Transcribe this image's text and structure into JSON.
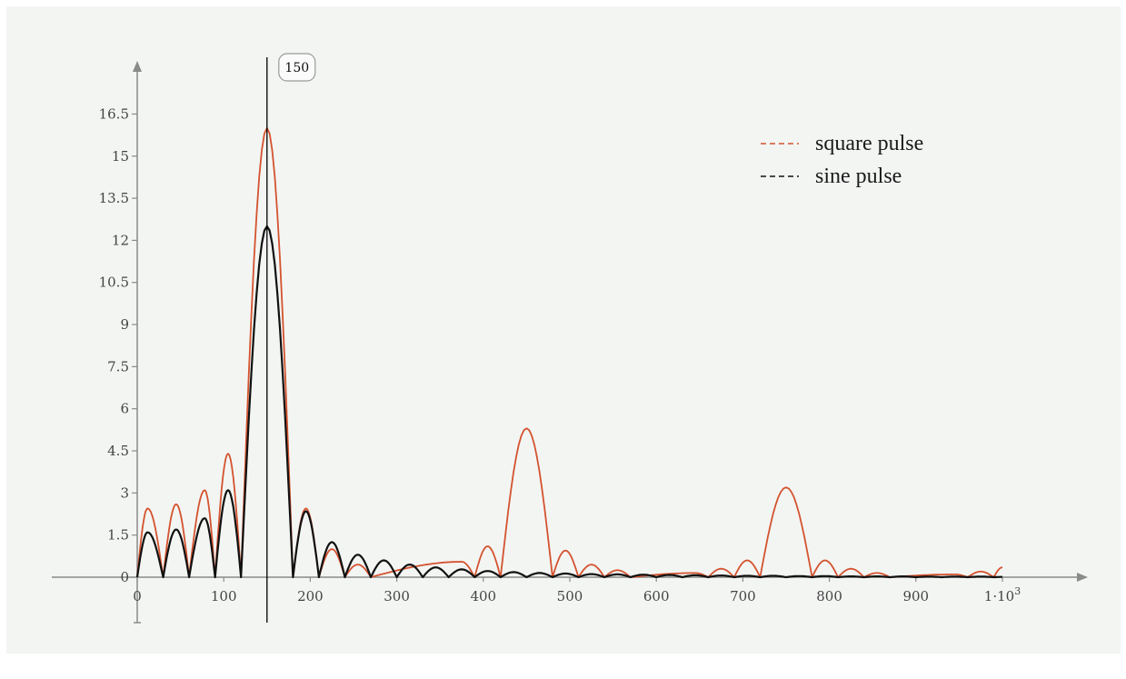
{
  "chart_data": {
    "type": "line",
    "title": "",
    "xlabel": "",
    "ylabel": "",
    "xlim": [
      0,
      1000
    ],
    "ylim": [
      0,
      17
    ],
    "x_ticks": [
      "0",
      "100",
      "200",
      "300",
      "400",
      "500",
      "600",
      "700",
      "800",
      "900",
      "1·10³"
    ],
    "x_tick_values": [
      0,
      100,
      200,
      300,
      400,
      500,
      600,
      700,
      800,
      900,
      1000
    ],
    "y_ticks": [
      "0",
      "1.5",
      "3",
      "4.5",
      "6",
      "7.5",
      "9",
      "10.5",
      "12",
      "13.5",
      "15",
      "16.5"
    ],
    "y_tick_values": [
      0,
      1.5,
      3,
      4.5,
      6,
      7.5,
      9,
      10.5,
      12,
      13.5,
      15,
      16.5
    ],
    "grid": false,
    "legend_position": "top-right",
    "legend": [
      {
        "label": "square pulse",
        "color": "#d4532f"
      },
      {
        "label": "sine pulse",
        "color": "#111111"
      }
    ],
    "marker": {
      "x": 150,
      "label": "150"
    },
    "series": [
      {
        "name": "square pulse",
        "color": "#d4532f",
        "points": [
          [
            0,
            0
          ],
          [
            12,
            2.45
          ],
          [
            30,
            0
          ],
          [
            45,
            2.6
          ],
          [
            60,
            0
          ],
          [
            78,
            3.1
          ],
          [
            90,
            0
          ],
          [
            105,
            4.4
          ],
          [
            120,
            0
          ],
          [
            150,
            16.0
          ],
          [
            180,
            0
          ],
          [
            195,
            2.45
          ],
          [
            210,
            0
          ],
          [
            225,
            1.0
          ],
          [
            240,
            0
          ],
          [
            255,
            0.45
          ],
          [
            270,
            0
          ],
          [
            375,
            0.55
          ],
          [
            390,
            0
          ],
          [
            405,
            1.1
          ],
          [
            420,
            0
          ],
          [
            450,
            5.3
          ],
          [
            480,
            0
          ],
          [
            495,
            0.95
          ],
          [
            510,
            0
          ],
          [
            525,
            0.45
          ],
          [
            540,
            0
          ],
          [
            555,
            0.25
          ],
          [
            570,
            0
          ],
          [
            645,
            0.15
          ],
          [
            660,
            0
          ],
          [
            675,
            0.3
          ],
          [
            690,
            0
          ],
          [
            705,
            0.6
          ],
          [
            720,
            0
          ],
          [
            750,
            3.2
          ],
          [
            780,
            0
          ],
          [
            795,
            0.6
          ],
          [
            810,
            0
          ],
          [
            825,
            0.3
          ],
          [
            840,
            0
          ],
          [
            855,
            0.15
          ],
          [
            870,
            0
          ],
          [
            945,
            0.1
          ],
          [
            960,
            0
          ],
          [
            975,
            0.2
          ],
          [
            990,
            0
          ],
          [
            1000,
            0.35
          ]
        ]
      },
      {
        "name": "sine pulse",
        "color": "#111111",
        "points": [
          [
            0,
            0
          ],
          [
            12,
            1.6
          ],
          [
            30,
            0
          ],
          [
            45,
            1.7
          ],
          [
            60,
            0
          ],
          [
            78,
            2.1
          ],
          [
            90,
            0
          ],
          [
            105,
            3.1
          ],
          [
            120,
            0
          ],
          [
            150,
            12.5
          ],
          [
            180,
            0
          ],
          [
            195,
            2.35
          ],
          [
            210,
            0
          ],
          [
            225,
            1.25
          ],
          [
            240,
            0
          ],
          [
            255,
            0.8
          ],
          [
            270,
            0
          ],
          [
            285,
            0.6
          ],
          [
            300,
            0
          ],
          [
            315,
            0.45
          ],
          [
            330,
            0
          ],
          [
            345,
            0.35
          ],
          [
            360,
            0
          ],
          [
            375,
            0.28
          ],
          [
            390,
            0
          ],
          [
            405,
            0.22
          ],
          [
            420,
            0
          ],
          [
            435,
            0.18
          ],
          [
            450,
            0
          ],
          [
            465,
            0.15
          ],
          [
            480,
            0
          ],
          [
            495,
            0.13
          ],
          [
            510,
            0
          ],
          [
            525,
            0.11
          ],
          [
            540,
            0
          ],
          [
            555,
            0.1
          ],
          [
            570,
            0
          ],
          [
            585,
            0.09
          ],
          [
            600,
            0
          ],
          [
            615,
            0.08
          ],
          [
            630,
            0
          ],
          [
            645,
            0.07
          ],
          [
            660,
            0
          ],
          [
            675,
            0.06
          ],
          [
            690,
            0
          ],
          [
            705,
            0.05
          ],
          [
            720,
            0
          ],
          [
            735,
            0.05
          ],
          [
            750,
            0
          ],
          [
            765,
            0.04
          ],
          [
            780,
            0
          ],
          [
            795,
            0.04
          ],
          [
            810,
            0
          ],
          [
            825,
            0.03
          ],
          [
            840,
            0
          ],
          [
            855,
            0.03
          ],
          [
            870,
            0
          ],
          [
            885,
            0.03
          ],
          [
            900,
            0
          ],
          [
            915,
            0.02
          ],
          [
            930,
            0
          ],
          [
            945,
            0.02
          ],
          [
            960,
            0
          ],
          [
            975,
            0.02
          ],
          [
            990,
            0
          ],
          [
            1000,
            0.01
          ]
        ]
      }
    ]
  }
}
